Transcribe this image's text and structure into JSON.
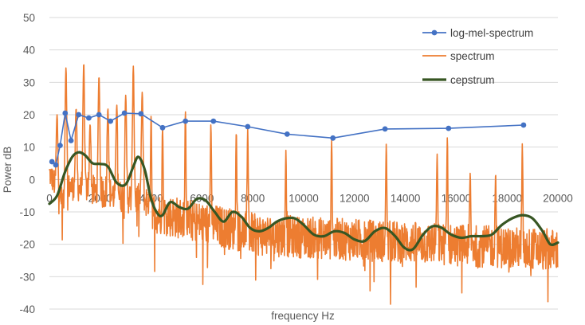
{
  "chart_data": {
    "type": "line",
    "title": "",
    "xlabel": "frequency Hz",
    "ylabel": "Power dB",
    "xlim": [
      0,
      20000
    ],
    "ylim": [
      -40,
      50
    ],
    "x_ticks": [
      0,
      2000,
      4000,
      6000,
      8000,
      10000,
      12000,
      14000,
      16000,
      18000,
      20000
    ],
    "y_ticks": [
      -40,
      -30,
      -20,
      -10,
      0,
      10,
      20,
      30,
      40,
      50
    ],
    "grid": "horizontal",
    "legend_position": "top-right",
    "series": [
      {
        "name": "log-mel-spectrum",
        "color": "#4472c4",
        "marker": "circle",
        "points": [
          [
            100,
            5.5
          ],
          [
            250,
            4.5
          ],
          [
            420,
            10.5
          ],
          [
            620,
            20.5
          ],
          [
            850,
            12
          ],
          [
            1150,
            20
          ],
          [
            1550,
            19
          ],
          [
            1950,
            20
          ],
          [
            2400,
            18
          ],
          [
            2950,
            20.5
          ],
          [
            3600,
            20.3
          ],
          [
            4450,
            16
          ],
          [
            5350,
            18
          ],
          [
            6450,
            18
          ],
          [
            7800,
            16.3
          ],
          [
            9350,
            14
          ],
          [
            11150,
            12.8
          ],
          [
            13200,
            15.6
          ],
          [
            15700,
            15.8
          ],
          [
            18650,
            16.8
          ]
        ]
      },
      {
        "name": "spectrum",
        "color": "#ed7d31",
        "harmonic_peaks": [
          [
            300,
            20
          ],
          [
            650,
            34.5
          ],
          [
            1050,
            22
          ],
          [
            1350,
            36
          ],
          [
            1600,
            17
          ],
          [
            1950,
            32
          ],
          [
            2300,
            22
          ],
          [
            2650,
            23
          ],
          [
            3000,
            26
          ],
          [
            3300,
            35
          ],
          [
            3650,
            27
          ],
          [
            4000,
            20
          ],
          [
            4450,
            16
          ],
          [
            5350,
            21
          ],
          [
            6350,
            17
          ],
          [
            7350,
            15
          ],
          [
            7800,
            16
          ],
          [
            9300,
            9
          ],
          [
            11100,
            12
          ],
          [
            13250,
            11
          ],
          [
            15250,
            8
          ],
          [
            15650,
            13
          ],
          [
            16550,
            2
          ],
          [
            17550,
            2
          ],
          [
            18600,
            11
          ]
        ]
      },
      {
        "name": "cepstrum",
        "color": "#375623",
        "points": [
          [
            0,
            -7.5
          ],
          [
            300,
            -5
          ],
          [
            600,
            2
          ],
          [
            900,
            7
          ],
          [
            1150,
            8.4
          ],
          [
            1400,
            7.5
          ],
          [
            1700,
            5
          ],
          [
            2000,
            4.8
          ],
          [
            2300,
            4
          ],
          [
            2650,
            -1
          ],
          [
            3000,
            -1.5
          ],
          [
            3300,
            4
          ],
          [
            3500,
            7
          ],
          [
            3750,
            3
          ],
          [
            4000,
            -6
          ],
          [
            4250,
            -10.5
          ],
          [
            4450,
            -11
          ],
          [
            4750,
            -7
          ],
          [
            5100,
            -8.5
          ],
          [
            5450,
            -9
          ],
          [
            5800,
            -6
          ],
          [
            6150,
            -6.5
          ],
          [
            6500,
            -10
          ],
          [
            6850,
            -13
          ],
          [
            7200,
            -10
          ],
          [
            7550,
            -11.5
          ],
          [
            7900,
            -15
          ],
          [
            8250,
            -16
          ],
          [
            8600,
            -15
          ],
          [
            8950,
            -13
          ],
          [
            9300,
            -12
          ],
          [
            9650,
            -12
          ],
          [
            10000,
            -14
          ],
          [
            10400,
            -17
          ],
          [
            10800,
            -17.5
          ],
          [
            11200,
            -16
          ],
          [
            11600,
            -16.5
          ],
          [
            12000,
            -18.5
          ],
          [
            12400,
            -19
          ],
          [
            12800,
            -16
          ],
          [
            13200,
            -15
          ],
          [
            13600,
            -17.5
          ],
          [
            13950,
            -21
          ],
          [
            14300,
            -21.5
          ],
          [
            14700,
            -17
          ],
          [
            15050,
            -14.5
          ],
          [
            15400,
            -14.8
          ],
          [
            15800,
            -17
          ],
          [
            16200,
            -18
          ],
          [
            16600,
            -17.5
          ],
          [
            17000,
            -17.5
          ],
          [
            17400,
            -17
          ],
          [
            17800,
            -14
          ],
          [
            18200,
            -12
          ],
          [
            18600,
            -11
          ],
          [
            19000,
            -12
          ],
          [
            19400,
            -16
          ],
          [
            19700,
            -20
          ],
          [
            20000,
            -19.5
          ]
        ]
      }
    ]
  }
}
